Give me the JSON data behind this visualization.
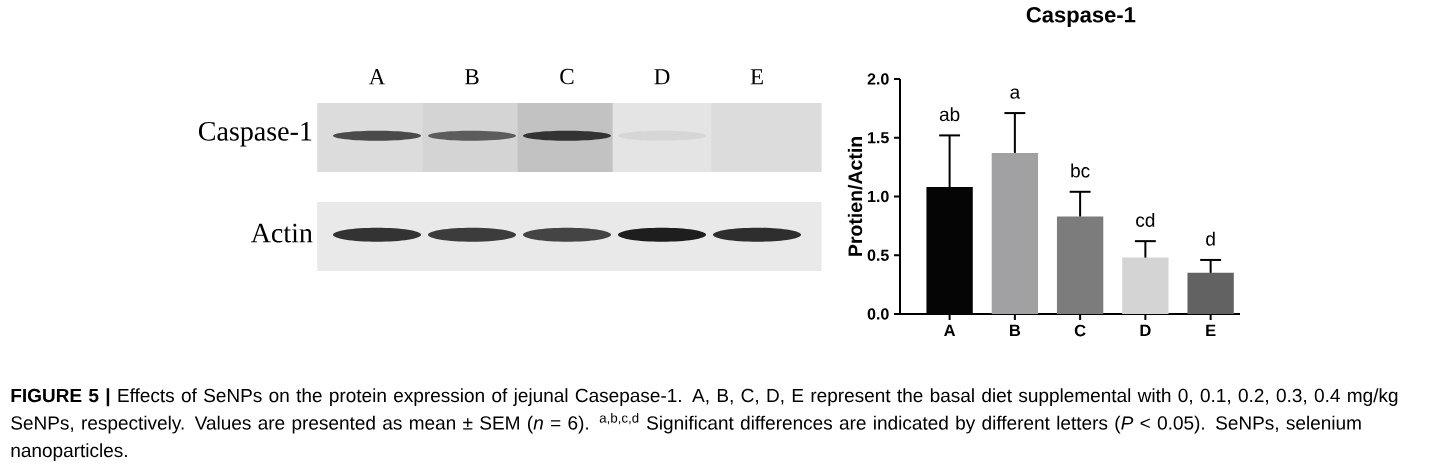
{
  "chart_data": [
    {
      "type": "other",
      "categories": [
        "A",
        "B",
        "C",
        "D",
        "E"
      ],
      "annotations": [
        "Caspase-1",
        "Actin"
      ]
    },
    {
      "type": "bar",
      "title": "Caspase-1",
      "ylabel": "Protien/Actin",
      "categories": [
        "A",
        "B",
        "C",
        "D",
        "E"
      ],
      "values": [
        1.08,
        1.37,
        0.83,
        0.48,
        0.35
      ],
      "colors": [
        "#050505",
        "#a1a1a3",
        "#7c7c7c",
        "#d4d4d4",
        "#626262"
      ],
      "errors": [
        [
          1.08,
          1.52
        ],
        [
          1.37,
          1.71
        ],
        [
          0.83,
          1.04
        ],
        [
          0.48,
          0.62
        ],
        [
          0.35,
          0.46
        ]
      ],
      "ylim": [
        0,
        2
      ],
      "yticks": [
        {
          "value": 0,
          "label": "0.0"
        },
        0.5,
        {
          "value": 1,
          "label": "1.0"
        },
        1.5,
        {
          "value": 2,
          "label": "2.0"
        }
      ],
      "annotations": [
        "ab",
        "a",
        "bc",
        "cd",
        "d",
        "**FIGURE 5 |** Effects of SeNPs on the protein expression of jejunal Casepase-1. A, B, C, D, E represent the basal diet supplemental with 0, 0.1, 0.2, 0.3, 0.4 mg/kg SeNPs, respectively. Values are presented as mean ± SEM (*n* = 6). $^{a,b,c,d}$ Significant differences are indicated by different letters (*P* < 0.05). SeNPs, selenium nanoparticles."
      ]
    }
  ]
}
